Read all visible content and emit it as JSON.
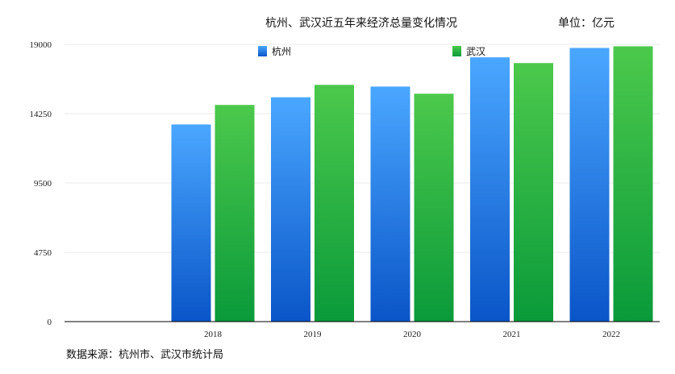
{
  "chart_data": {
    "type": "bar",
    "title": "杭州、武汉近五年来经济总量变化情况",
    "unit_label": "单位：亿元",
    "source": "数据来源：杭州市、武汉市统计局",
    "categories": [
      "2018",
      "2019",
      "2020",
      "2021",
      "2022"
    ],
    "series": [
      {
        "name": "杭州",
        "values": [
          13509,
          15373,
          16106,
          18109,
          18753
        ],
        "color_top": "#4aa7ff",
        "color_bottom": "#0a55c8"
      },
      {
        "name": "武汉",
        "values": [
          14847,
          16223,
          15616,
          17717,
          18866
        ],
        "color_top": "#4cc94c",
        "color_bottom": "#0a9a3a"
      }
    ],
    "ylim": [
      0,
      19000
    ],
    "yticks": [
      0,
      4750,
      9500,
      14250,
      19000
    ],
    "grid": true,
    "legend_position": "top"
  }
}
